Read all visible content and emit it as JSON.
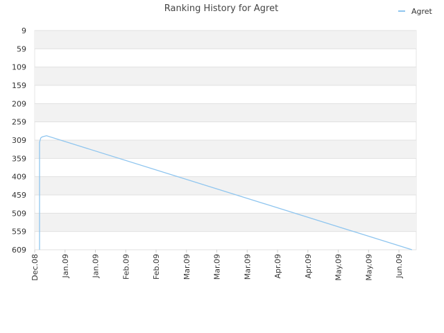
{
  "chart_data": {
    "type": "line",
    "title": "Ranking History for Agret",
    "xticks": [
      {
        "value": 0,
        "label": "Dec.08"
      },
      {
        "value": 1,
        "label": "Jan.09"
      },
      {
        "value": 2,
        "label": "Jan.09"
      },
      {
        "value": 3,
        "label": "Feb.09"
      },
      {
        "value": 4,
        "label": "Feb.09"
      },
      {
        "value": 5,
        "label": "Mar.09"
      },
      {
        "value": 6,
        "label": "Mar.09"
      },
      {
        "value": 7,
        "label": "Mar.09"
      },
      {
        "value": 8,
        "label": "Apr.09"
      },
      {
        "value": 9,
        "label": "Apr.09"
      },
      {
        "value": 10,
        "label": "May.09"
      },
      {
        "value": 11,
        "label": "May.09"
      },
      {
        "value": 12,
        "label": "Jun.09"
      }
    ],
    "xlim": [
      0,
      12.57
    ],
    "ylim": [
      609,
      9
    ],
    "yticks": [
      9,
      59,
      109,
      159,
      209,
      259,
      309,
      359,
      409,
      459,
      509,
      559,
      609
    ],
    "grid": true,
    "legend": "top-right",
    "series": [
      {
        "name": "Agret",
        "color": "#8ec5ef",
        "x": [
          0.16,
          0.16,
          0.2,
          0.25,
          0.39,
          12.43
        ],
        "values": [
          609,
          315,
          303,
          300,
          297,
          609
        ]
      }
    ]
  }
}
